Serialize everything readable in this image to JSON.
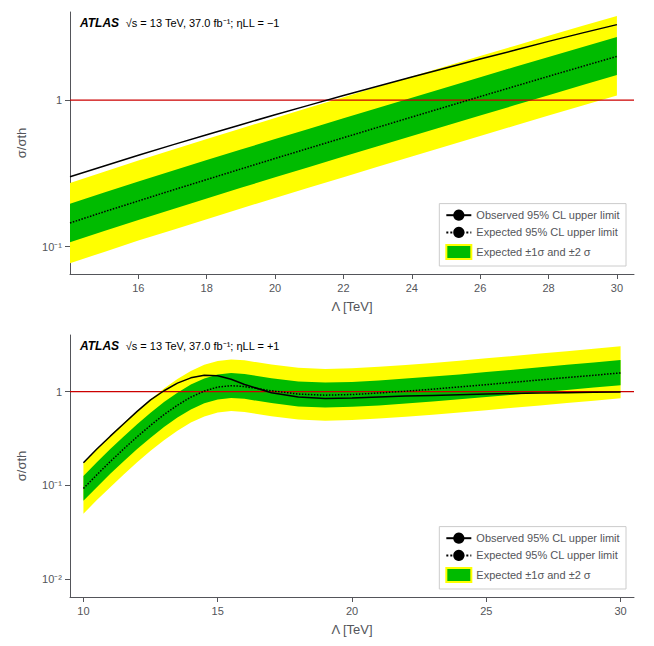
{
  "chart_data": [
    {
      "type": "line",
      "annotations": [
        "ATLAS",
        "√s = 13 TeV, 37.0 fb⁻¹; ηLL = −1"
      ],
      "xlabel": "Λ [TeV]",
      "ylabel": "σ/σth",
      "xlim": [
        14.0,
        30.5
      ],
      "xticks": [
        16,
        18,
        20,
        22,
        24,
        26,
        28,
        30
      ],
      "ylim": [
        0.065,
        4.0
      ],
      "yticks": [
        {
          "value": 0.1,
          "label": "10⁻¹"
        },
        1
      ],
      "log": "y",
      "grid": false,
      "legend": "lower right",
      "reference_line": {
        "y": 1.0,
        "color": "#cc0000"
      },
      "series": [
        {
          "name": "Expected ±1σ and ±2 σ",
          "type": "band",
          "x": [
            14,
            15,
            16,
            17,
            18,
            19,
            20,
            21,
            22,
            23,
            24,
            25,
            26,
            27,
            28,
            29,
            30
          ],
          "bands": [
            {
              "color": "#ffff00",
              "lower": [
                0.077,
                0.092,
                0.11,
                0.13,
                0.154,
                0.182,
                0.215,
                0.253,
                0.298,
                0.351,
                0.413,
                0.485,
                0.57,
                0.669,
                0.785,
                0.919,
                1.076
              ],
              "upper": [
                0.272,
                0.325,
                0.387,
                0.459,
                0.543,
                0.641,
                0.756,
                0.89,
                1.048,
                1.233,
                1.449,
                1.703,
                2.0,
                2.348,
                2.754,
                3.22,
                3.76
              ]
            },
            {
              "color": "#00bb00",
              "lower": [
                0.107,
                0.128,
                0.152,
                0.18,
                0.213,
                0.252,
                0.297,
                0.35,
                0.412,
                0.485,
                0.57,
                0.67,
                0.786,
                0.922,
                1.082,
                1.268,
                1.483
              ],
              "upper": [
                0.196,
                0.234,
                0.278,
                0.33,
                0.39,
                0.46,
                0.542,
                0.639,
                0.752,
                0.885,
                1.04,
                1.222,
                1.435,
                1.684,
                1.974,
                2.31,
                2.7
              ]
            }
          ]
        },
        {
          "name": "Expected 95% CL upper limit",
          "type": "line",
          "color": "#000000",
          "line_style": "dotted",
          "x": [
            14,
            15,
            16,
            17,
            18,
            19,
            20,
            21,
            22,
            23,
            24,
            25,
            26,
            27,
            28,
            29,
            30
          ],
          "values": [
            0.145,
            0.173,
            0.205,
            0.243,
            0.287,
            0.339,
            0.4,
            0.471,
            0.554,
            0.652,
            0.767,
            0.901,
            1.058,
            1.241,
            1.455,
            1.703,
            1.99
          ]
        },
        {
          "name": "Observed 95% CL upper limit",
          "type": "line",
          "color": "#000000",
          "line_style": "solid",
          "x": [
            14,
            15,
            16,
            17,
            18,
            19,
            20,
            21,
            22,
            23,
            24,
            25,
            26,
            27,
            28,
            29,
            30
          ],
          "values": [
            0.3,
            0.355,
            0.42,
            0.495,
            0.58,
            0.68,
            0.795,
            0.925,
            1.075,
            1.245,
            1.44,
            1.66,
            1.91,
            2.19,
            2.52,
            2.88,
            3.28
          ]
        }
      ],
      "legend_order": [
        "Observed 95% CL upper limit",
        "Expected 95% CL upper limit",
        "Expected ±1σ and ±2 σ"
      ]
    },
    {
      "type": "line",
      "annotations": [
        "ATLAS",
        "√s = 13 TeV, 37.0 fb⁻¹; ηLL = +1"
      ],
      "xlabel": "Λ [TeV]",
      "ylabel": "σ/σth",
      "xlim": [
        9.5,
        30.5
      ],
      "xticks": [
        10,
        15,
        20,
        25,
        30
      ],
      "ylim": [
        0.0065,
        4.0
      ],
      "yticks": [
        {
          "value": 0.01,
          "label": "10⁻²"
        },
        {
          "value": 0.1,
          "label": "10⁻¹"
        },
        1
      ],
      "log": "y",
      "grid": false,
      "legend": "lower right",
      "reference_line": {
        "y": 1.0,
        "color": "#cc0000"
      },
      "series": [
        {
          "name": "Expected ±1σ and ±2 σ",
          "type": "band",
          "x": [
            10,
            10.5,
            11,
            11.5,
            12,
            12.5,
            13,
            13.5,
            14,
            14.5,
            15,
            15.5,
            16,
            17,
            18,
            19,
            20,
            21,
            22,
            23,
            24,
            25,
            26,
            27,
            28,
            29,
            30
          ],
          "bands": [
            {
              "color": "#ffff00",
              "lower": [
                0.05,
                0.07,
                0.096,
                0.131,
                0.177,
                0.234,
                0.304,
                0.383,
                0.467,
                0.542,
                0.597,
                0.619,
                0.605,
                0.546,
                0.503,
                0.489,
                0.497,
                0.516,
                0.54,
                0.567,
                0.599,
                0.634,
                0.671,
                0.711,
                0.754,
                0.799,
                0.847
              ],
              "upper": [
                0.175,
                0.246,
                0.34,
                0.464,
                0.625,
                0.828,
                1.077,
                1.36,
                1.657,
                1.924,
                2.118,
                2.196,
                2.148,
                1.938,
                1.788,
                1.74,
                1.767,
                1.834,
                1.921,
                2.018,
                2.131,
                2.256,
                2.39,
                2.537,
                2.694,
                2.862,
                3.038
              ]
            },
            {
              "color": "#00bb00",
              "lower": [
                0.069,
                0.096,
                0.133,
                0.181,
                0.244,
                0.323,
                0.42,
                0.53,
                0.645,
                0.749,
                0.824,
                0.855,
                0.836,
                0.754,
                0.695,
                0.676,
                0.687,
                0.712,
                0.746,
                0.783,
                0.827,
                0.875,
                0.927,
                0.982,
                1.042,
                1.104,
                1.17
              ],
              "upper": [
                0.126,
                0.177,
                0.244,
                0.333,
                0.449,
                0.594,
                0.772,
                0.974,
                1.186,
                1.378,
                1.516,
                1.572,
                1.537,
                1.387,
                1.279,
                1.245,
                1.264,
                1.311,
                1.373,
                1.443,
                1.523,
                1.613,
                1.708,
                1.812,
                1.924,
                2.043,
                2.166
              ]
            }
          ]
        },
        {
          "name": "Expected 95% CL upper limit",
          "type": "line",
          "color": "#000000",
          "line_style": "dotted",
          "x": [
            10,
            10.5,
            11,
            11.5,
            12,
            12.5,
            13,
            13.5,
            14,
            14.5,
            15,
            15.5,
            16,
            17,
            18,
            19,
            20,
            21,
            22,
            23,
            24,
            25,
            26,
            27,
            28,
            29,
            30
          ],
          "values": [
            0.093,
            0.13,
            0.18,
            0.245,
            0.33,
            0.437,
            0.568,
            0.716,
            0.872,
            1.013,
            1.115,
            1.156,
            1.13,
            1.02,
            0.94,
            0.915,
            0.93,
            0.965,
            1.01,
            1.06,
            1.12,
            1.185,
            1.255,
            1.33,
            1.41,
            1.49,
            1.58
          ]
        },
        {
          "name": "Observed 95% CL upper limit",
          "type": "line",
          "color": "#000000",
          "line_style": "solid",
          "x": [
            10,
            10.5,
            11,
            11.5,
            12,
            12.5,
            13,
            13.5,
            14,
            14.5,
            15,
            15.5,
            16,
            17,
            18,
            19,
            20,
            21,
            22,
            23,
            24,
            25,
            26,
            27,
            28,
            29,
            30
          ],
          "values": [
            0.175,
            0.245,
            0.335,
            0.455,
            0.615,
            0.815,
            1.02,
            1.23,
            1.4,
            1.49,
            1.47,
            1.35,
            1.19,
            0.97,
            0.875,
            0.845,
            0.855,
            0.875,
            0.895,
            0.91,
            0.925,
            0.94,
            0.953,
            0.963,
            0.973,
            0.982,
            0.991
          ]
        }
      ],
      "legend_order": [
        "Observed 95% CL upper limit",
        "Expected 95% CL upper limit",
        "Expected ±1σ and ±2 σ"
      ]
    }
  ]
}
